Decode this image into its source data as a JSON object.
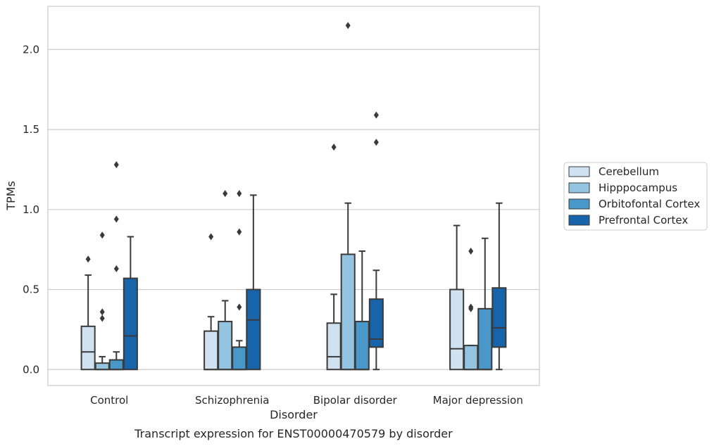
{
  "chart_data": {
    "type": "box",
    "title": "",
    "caption": "Transcript expression for ENST00000470579 by disorder",
    "xlabel": "Disorder",
    "ylabel": "TPMs",
    "ylim": [
      -0.1,
      2.27
    ],
    "yticks": [
      0.0,
      0.5,
      1.0,
      1.5,
      2.0
    ],
    "ytick_labels": [
      "0.0",
      "0.5",
      "1.0",
      "1.5",
      "2.0"
    ],
    "grid": "horizontal",
    "legend_position": "right",
    "categories": [
      "Control",
      "Schizophrenia",
      "Bipolar disorder",
      "Major depression"
    ],
    "series": [
      {
        "name": "Cerebellum",
        "color": "#d0e1f2",
        "boxes": [
          {
            "q1": 0.0,
            "median": 0.11,
            "q3": 0.27,
            "whisker_low": 0.0,
            "whisker_high": 0.59,
            "outliers": [
              0.69
            ]
          },
          {
            "q1": 0.0,
            "median": 0.0,
            "q3": 0.24,
            "whisker_low": 0.0,
            "whisker_high": 0.33,
            "outliers": [
              0.83
            ]
          },
          {
            "q1": 0.0,
            "median": 0.08,
            "q3": 0.29,
            "whisker_low": 0.0,
            "whisker_high": 0.47,
            "outliers": [
              1.39
            ]
          },
          {
            "q1": 0.0,
            "median": 0.13,
            "q3": 0.5,
            "whisker_low": 0.0,
            "whisker_high": 0.9,
            "outliers": []
          }
        ]
      },
      {
        "name": "Hipppocampus",
        "color": "#94c4df",
        "boxes": [
          {
            "q1": 0.0,
            "median": 0.0,
            "q3": 0.04,
            "whisker_low": 0.0,
            "whisker_high": 0.08,
            "outliers": [
              0.84,
              0.36,
              0.32
            ]
          },
          {
            "q1": 0.0,
            "median": 0.0,
            "q3": 0.3,
            "whisker_low": 0.0,
            "whisker_high": 0.43,
            "outliers": [
              1.1
            ]
          },
          {
            "q1": 0.0,
            "median": 0.0,
            "q3": 0.72,
            "whisker_low": 0.0,
            "whisker_high": 1.04,
            "outliers": [
              2.15
            ]
          },
          {
            "q1": 0.0,
            "median": 0.0,
            "q3": 0.15,
            "whisker_low": 0.0,
            "whisker_high": 0.15,
            "outliers": [
              0.74,
              0.39,
              0.38
            ]
          }
        ]
      },
      {
        "name": "Orbitofontal Cortex",
        "color": "#4a98c9",
        "boxes": [
          {
            "q1": 0.0,
            "median": 0.0,
            "q3": 0.06,
            "whisker_low": 0.0,
            "whisker_high": 0.11,
            "outliers": [
              1.28,
              0.94,
              0.63
            ]
          },
          {
            "q1": 0.0,
            "median": 0.0,
            "q3": 0.14,
            "whisker_low": 0.0,
            "whisker_high": 0.18,
            "outliers": [
              1.1,
              0.86,
              0.39
            ]
          },
          {
            "q1": 0.0,
            "median": 0.0,
            "q3": 0.3,
            "whisker_low": 0.0,
            "whisker_high": 0.74,
            "outliers": []
          },
          {
            "q1": 0.0,
            "median": 0.0,
            "q3": 0.38,
            "whisker_low": 0.0,
            "whisker_high": 0.82,
            "outliers": []
          }
        ]
      },
      {
        "name": "Prefrontal Cortex",
        "color": "#1764ab",
        "boxes": [
          {
            "q1": 0.0,
            "median": 0.21,
            "q3": 0.57,
            "whisker_low": 0.0,
            "whisker_high": 0.83,
            "outliers": []
          },
          {
            "q1": 0.0,
            "median": 0.31,
            "q3": 0.5,
            "whisker_low": 0.0,
            "whisker_high": 1.09,
            "outliers": []
          },
          {
            "q1": 0.14,
            "median": 0.19,
            "q3": 0.44,
            "whisker_low": 0.0,
            "whisker_high": 0.62,
            "outliers": [
              1.59,
              1.42
            ]
          },
          {
            "q1": 0.14,
            "median": 0.26,
            "q3": 0.51,
            "whisker_low": 0.0,
            "whisker_high": 1.04,
            "outliers": []
          }
        ]
      }
    ]
  }
}
